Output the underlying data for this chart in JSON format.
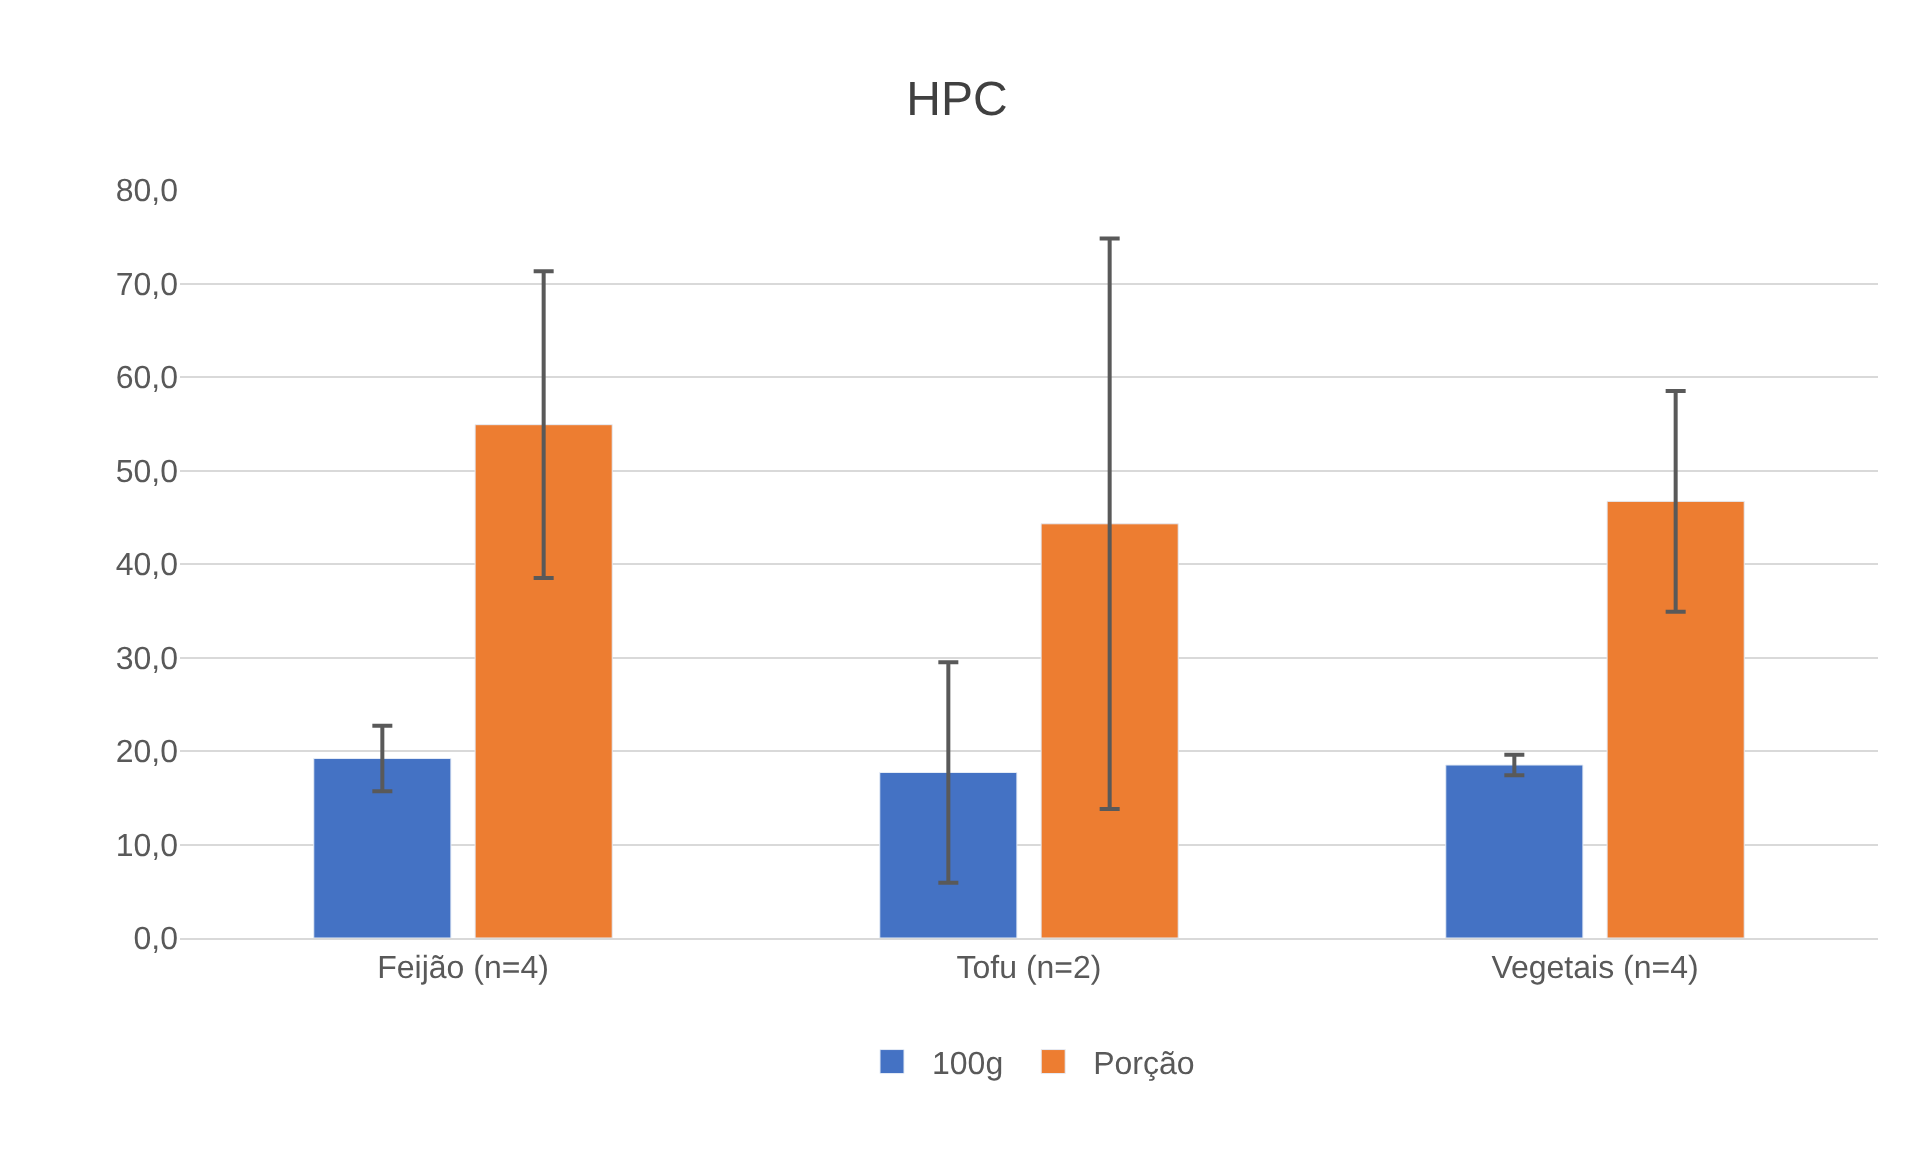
{
  "chart_data": {
    "type": "bar",
    "title": "HPC",
    "categories": [
      "Feijão (n=4)",
      "Tofu (n=2)",
      "Vegetais (n=4)"
    ],
    "series": [
      {
        "name": "100g",
        "color": "#4472c4",
        "values": [
          19.2,
          17.7,
          18.5
        ],
        "errors": [
          3.5,
          11.8,
          1.1
        ]
      },
      {
        "name": "Porção",
        "color": "#ed7d31",
        "values": [
          54.9,
          44.3,
          46.7
        ],
        "errors": [
          16.4,
          30.5,
          11.8
        ]
      }
    ],
    "ylim": [
      0,
      80
    ],
    "yticks": [
      {
        "value": 0,
        "label": "0,0"
      },
      {
        "value": 10,
        "label": "10,0"
      },
      {
        "value": 20,
        "label": "20,0"
      },
      {
        "value": 30,
        "label": "30,0"
      },
      {
        "value": 40,
        "label": "40,0"
      },
      {
        "value": 50,
        "label": "50,0"
      },
      {
        "value": 60,
        "label": "60,0"
      },
      {
        "value": 70,
        "label": "70,0"
      },
      {
        "value": 80,
        "label": "80,0"
      }
    ],
    "grid": "y",
    "legend": "bottom"
  }
}
